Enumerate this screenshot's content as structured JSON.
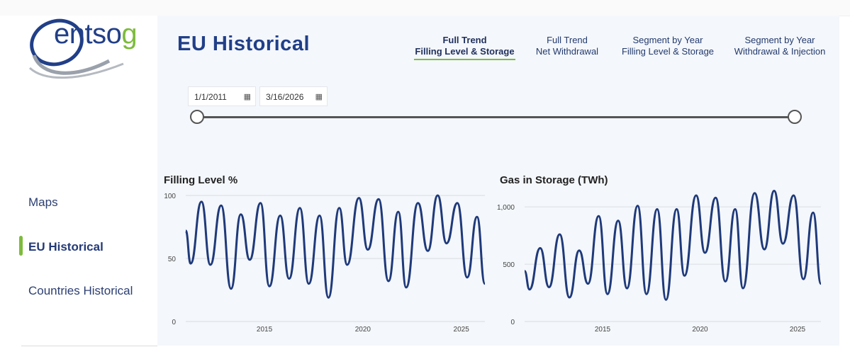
{
  "brand": {
    "logo_text_main": "entso",
    "logo_text_accent": "g"
  },
  "sidebar": {
    "items": [
      {
        "label": "Maps",
        "active": false
      },
      {
        "label": "EU Historical",
        "active": true
      },
      {
        "label": "Countries Historical",
        "active": false
      }
    ]
  },
  "header": {
    "title": "EU Historical"
  },
  "tabs": [
    {
      "line1": "Full Trend",
      "line2": "Filling Level & Storage",
      "active": true
    },
    {
      "line1": "Full Trend",
      "line2": "Net Withdrawal",
      "active": false
    },
    {
      "line1": "Segment by Year",
      "line2": "Filling Level & Storage",
      "active": false
    },
    {
      "line1": "Segment by Year",
      "line2": "Withdrawal & Injection",
      "active": false
    }
  ],
  "date_range": {
    "start": "1/1/2011",
    "end": "3/16/2026",
    "calendar_icon": "calendar-icon"
  },
  "colors": {
    "accent": "#7dbb3c",
    "brand": "#213f88",
    "series": "#1f3a7a"
  },
  "chart_data": [
    {
      "type": "line",
      "title": "Filling Level %",
      "ylim": [
        0,
        100
      ],
      "yticks": [
        "0",
        "50",
        "100"
      ],
      "xticks": [
        "2015",
        "2020",
        "2025"
      ],
      "xlim": [
        2011.0,
        2026.2
      ],
      "series": [
        {
          "x": [
            2011.0,
            2011.25,
            2011.8,
            2012.25,
            2012.8,
            2013.3,
            2013.8,
            2014.25,
            2014.8,
            2015.25,
            2015.8,
            2016.25,
            2016.8,
            2017.25,
            2017.8,
            2018.25,
            2018.8,
            2019.2,
            2019.8,
            2020.25,
            2020.8,
            2021.3,
            2021.8,
            2022.2,
            2022.8,
            2023.3,
            2023.8,
            2024.25,
            2024.8,
            2025.3,
            2025.8,
            2026.2
          ],
          "values": [
            72,
            46,
            95,
            45,
            92,
            26,
            85,
            49,
            94,
            28,
            84,
            34,
            90,
            30,
            84,
            19,
            90,
            45,
            98,
            57,
            97,
            32,
            87,
            27,
            94,
            56,
            100,
            62,
            94,
            35,
            83,
            30
          ]
        }
      ]
    },
    {
      "type": "line",
      "title": "Gas in Storage (TWh)",
      "ylim": [
        0,
        1100
      ],
      "yticks": [
        "0",
        "500",
        "1,000"
      ],
      "xticks": [
        "2015",
        "2020",
        "2025"
      ],
      "xlim": [
        2011.0,
        2026.2
      ],
      "series": [
        {
          "x": [
            2011.0,
            2011.25,
            2011.8,
            2012.25,
            2012.8,
            2013.3,
            2013.8,
            2014.25,
            2014.8,
            2015.25,
            2015.8,
            2016.25,
            2016.8,
            2017.25,
            2017.8,
            2018.25,
            2018.8,
            2019.2,
            2019.8,
            2020.25,
            2020.8,
            2021.3,
            2021.8,
            2022.2,
            2022.8,
            2023.3,
            2023.8,
            2024.25,
            2024.8,
            2025.3,
            2025.8,
            2026.2
          ],
          "values": [
            440,
            280,
            640,
            300,
            760,
            210,
            620,
            330,
            920,
            240,
            880,
            290,
            1010,
            240,
            980,
            190,
            980,
            400,
            1100,
            600,
            1080,
            350,
            980,
            290,
            1120,
            630,
            1140,
            680,
            1100,
            370,
            950,
            330
          ]
        }
      ]
    }
  ]
}
